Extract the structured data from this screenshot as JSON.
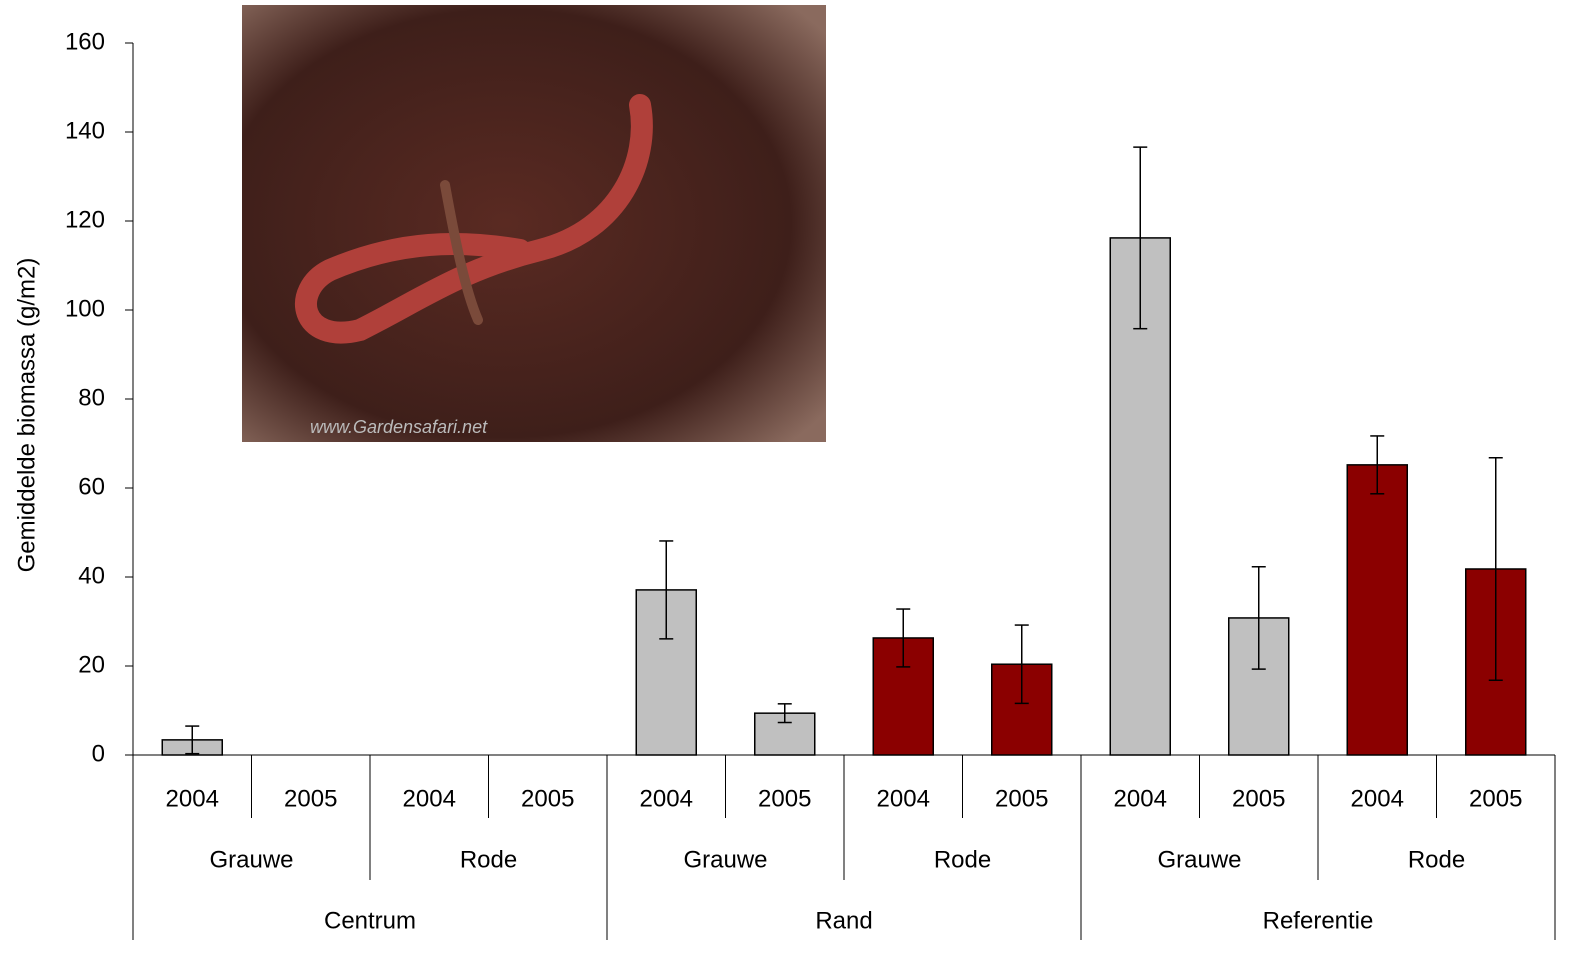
{
  "chart_data": {
    "type": "bar",
    "y_label": "Gemiddelde biomassa (g/m2)",
    "categories": [
      "2004",
      "2005",
      "2004",
      "2005",
      "2004",
      "2005",
      "2004",
      "2005",
      "2004",
      "2005",
      "2004",
      "2005"
    ],
    "species": [
      "Grauwe",
      "Rode",
      "Grauwe",
      "Rode",
      "Grauwe",
      "Rode"
    ],
    "sites": [
      "Centrum",
      "Rand",
      "Referentie"
    ],
    "values": [
      3.4,
      0,
      0,
      0,
      37.1,
      9.4,
      26.3,
      20.4,
      116.2,
      30.8,
      65.2,
      41.8
    ],
    "errors": [
      3.1,
      0,
      0,
      0,
      11,
      2.1,
      6.5,
      8.8,
      20.4,
      11.5,
      6.5,
      25
    ],
    "bar_colors": [
      "#c0c0c0",
      "#c0c0c0",
      "#8b0000",
      "#8b0000",
      "#c0c0c0",
      "#c0c0c0",
      "#8b0000",
      "#8b0000",
      "#c0c0c0",
      "#c0c0c0",
      "#8b0000",
      "#8b0000"
    ],
    "ylim": [
      0,
      160
    ],
    "yticks": [
      0,
      20,
      40,
      60,
      80,
      100,
      120,
      140,
      160
    ],
    "photo_watermark": "www.Gardensafari.net"
  }
}
